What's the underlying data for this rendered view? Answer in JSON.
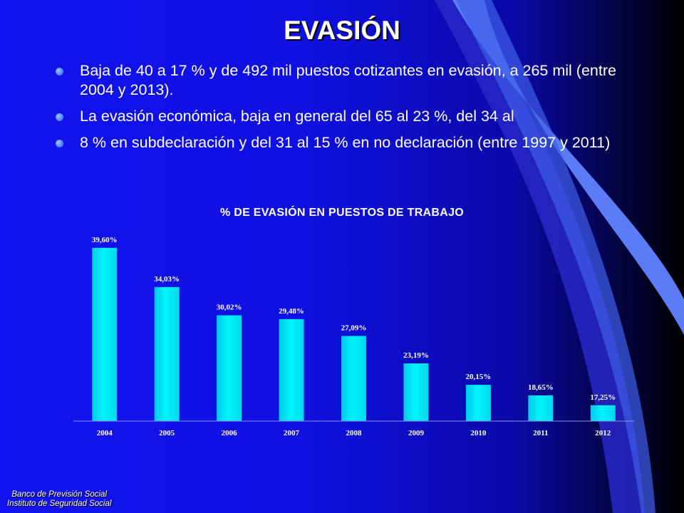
{
  "slide": {
    "title": "EVASIÓN",
    "bullets": [
      "Baja de 40 a 17 % y de 492 mil puestos cotizantes en evasión, a 265 mil (entre 2004 y 2013).",
      "La evasión económica, baja en general del 65 al 23 %, del 34 al",
      "8 % en subdeclaración y del 31 al 15 % en no declaración (entre 1997 y 2011)"
    ],
    "footer": {
      "line1": "Banco de Previsión Social",
      "line2": "Instituto de Seguridad Social"
    }
  },
  "colors": {
    "bar": "#00e5ee",
    "bar_light": "#7ffcff",
    "bullet": "#4f86f7",
    "ribbon": "#4d6ef2"
  },
  "chart_data": {
    "type": "bar",
    "title": "% DE EVASIÓN EN PUESTOS DE TRABAJO",
    "categories": [
      "2004",
      "2005",
      "2006",
      "2007",
      "2008",
      "2009",
      "2010",
      "2011",
      "2012"
    ],
    "values": [
      39.6,
      34.03,
      30.02,
      29.48,
      27.09,
      23.19,
      20.15,
      18.65,
      17.25
    ],
    "data_labels": [
      "39,60%",
      "34,03%",
      "30,02%",
      "29,48%",
      "27,09%",
      "23,19%",
      "20,15%",
      "18,65%",
      "17,25%"
    ],
    "ylim": [
      15,
      41
    ],
    "grid": false,
    "legend": "none"
  }
}
